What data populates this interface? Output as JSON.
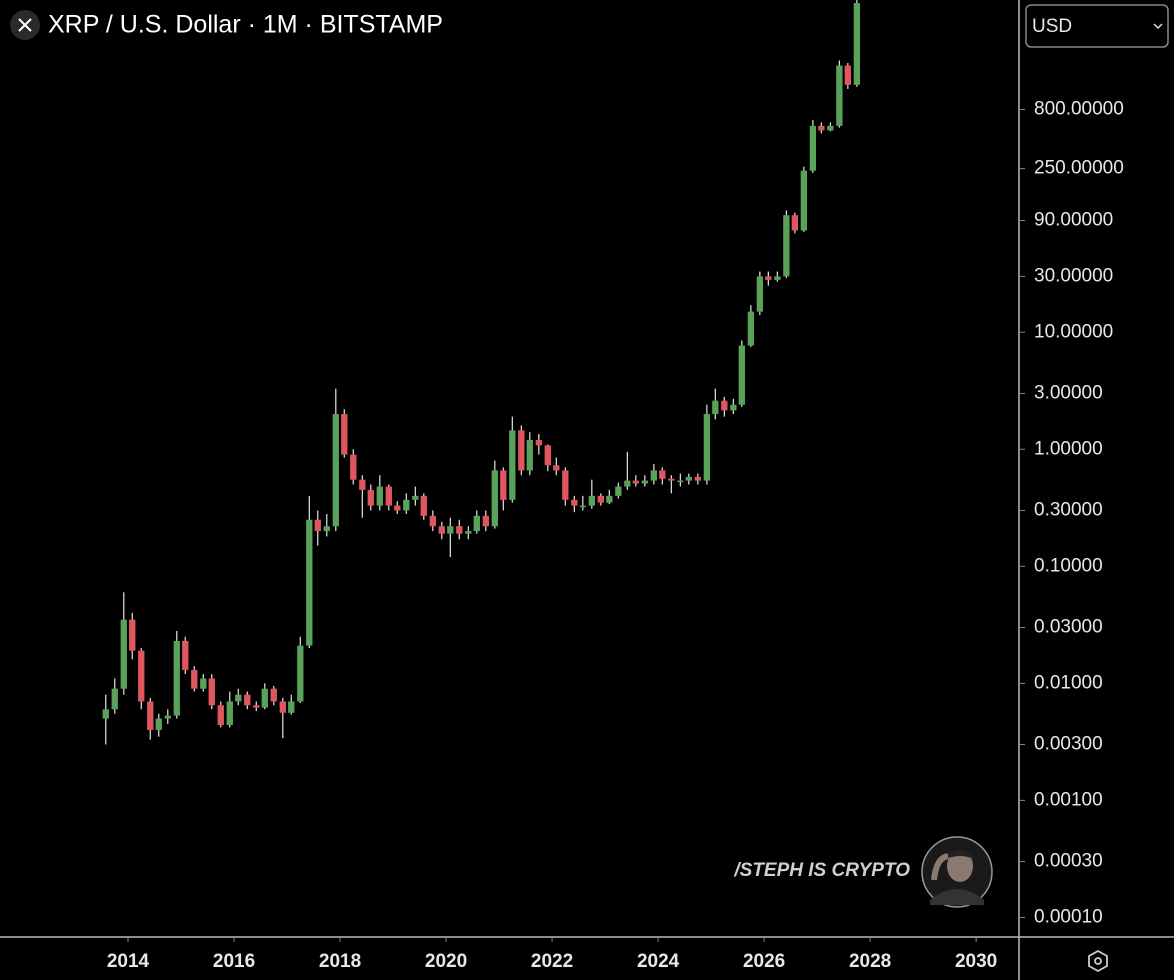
{
  "chart_data": {
    "type": "candlestick",
    "title": "XRP / U.S. Dollar · 1M · BITSTAMP",
    "log_scale": true,
    "up_color": "#5aa15a",
    "down_color": "#e0565e",
    "wick_color": "#e6e6e6",
    "x": [
      2013.58,
      2013.75,
      2013.92,
      2014.08,
      2014.25,
      2014.42,
      2014.58,
      2014.75,
      2014.92,
      2015.08,
      2015.25,
      2015.42,
      2015.58,
      2015.75,
      2015.92,
      2016.08,
      2016.25,
      2016.42,
      2016.58,
      2016.75,
      2016.92,
      2017.08,
      2017.25,
      2017.42,
      2017.58,
      2017.75,
      2017.92,
      2018.08,
      2018.25,
      2018.42,
      2018.58,
      2018.75,
      2018.92,
      2019.08,
      2019.25,
      2019.42,
      2019.58,
      2019.75,
      2019.92,
      2020.08,
      2020.25,
      2020.42,
      2020.58,
      2020.75,
      2020.92,
      2021.08,
      2021.25,
      2021.42,
      2021.58,
      2021.75,
      2021.92,
      2022.08,
      2022.25,
      2022.42,
      2022.58,
      2022.75,
      2022.92,
      2023.08,
      2023.25,
      2023.42,
      2023.58,
      2023.75,
      2023.92,
      2024.08,
      2024.25,
      2024.42,
      2024.58,
      2024.75,
      2024.92,
      2025.08,
      2025.25,
      2025.42,
      2025.58,
      2025.75,
      2025.92,
      2026.08,
      2026.25,
      2026.42,
      2026.58,
      2026.75,
      2026.92,
      2027.08,
      2027.25,
      2027.42,
      2027.58,
      2027.75
    ],
    "open": [
      0.005,
      0.006,
      0.009,
      0.035,
      0.019,
      0.007,
      0.004,
      0.005,
      0.0053,
      0.023,
      0.013,
      0.009,
      0.011,
      0.0065,
      0.0044,
      0.007,
      0.008,
      0.0065,
      0.0062,
      0.009,
      0.007,
      0.0056,
      0.007,
      0.021,
      0.25,
      0.2,
      0.22,
      2.0,
      0.9,
      0.55,
      0.45,
      0.33,
      0.48,
      0.33,
      0.3,
      0.37,
      0.4,
      0.27,
      0.22,
      0.19,
      0.22,
      0.19,
      0.2,
      0.27,
      0.22,
      0.66,
      0.37,
      1.45,
      0.66,
      1.2,
      1.08,
      0.73,
      0.66,
      0.37,
      0.33,
      0.33,
      0.4,
      0.35,
      0.4,
      0.48,
      0.54,
      0.51,
      0.54,
      0.66,
      0.56,
      0.54,
      0.54,
      0.58,
      0.54,
      2.0,
      2.6,
      2.15,
      2.4,
      7.7,
      15,
      30,
      28,
      30,
      100,
      74,
      240,
      580,
      530,
      580,
      1900,
      1300
    ],
    "high": [
      0.008,
      0.011,
      0.06,
      0.04,
      0.02,
      0.0075,
      0.0055,
      0.006,
      0.028,
      0.025,
      0.014,
      0.012,
      0.012,
      0.007,
      0.0085,
      0.009,
      0.0085,
      0.007,
      0.01,
      0.0095,
      0.0075,
      0.008,
      0.025,
      0.4,
      0.3,
      0.28,
      3.3,
      2.2,
      1.0,
      0.6,
      0.5,
      0.6,
      0.5,
      0.36,
      0.42,
      0.48,
      0.42,
      0.3,
      0.24,
      0.26,
      0.25,
      0.22,
      0.3,
      0.3,
      0.8,
      0.7,
      1.9,
      1.6,
      1.4,
      1.35,
      1.1,
      0.85,
      0.7,
      0.4,
      0.4,
      0.55,
      0.42,
      0.45,
      0.52,
      0.95,
      0.6,
      0.6,
      0.75,
      0.7,
      0.6,
      0.62,
      0.62,
      0.62,
      2.4,
      3.3,
      2.8,
      2.7,
      8.5,
      17,
      33,
      33,
      33,
      110,
      105,
      260,
      650,
      620,
      620,
      2100,
      2000,
      7000
    ],
    "low": [
      0.003,
      0.0055,
      0.008,
      0.016,
      0.006,
      0.0033,
      0.0035,
      0.0045,
      0.005,
      0.012,
      0.0085,
      0.0085,
      0.006,
      0.0042,
      0.0042,
      0.0065,
      0.006,
      0.0058,
      0.006,
      0.0065,
      0.0034,
      0.0054,
      0.0068,
      0.02,
      0.15,
      0.18,
      0.2,
      0.85,
      0.5,
      0.26,
      0.3,
      0.3,
      0.3,
      0.28,
      0.28,
      0.33,
      0.25,
      0.2,
      0.17,
      0.12,
      0.17,
      0.17,
      0.19,
      0.2,
      0.21,
      0.3,
      0.35,
      0.6,
      0.6,
      0.9,
      0.65,
      0.6,
      0.33,
      0.29,
      0.3,
      0.31,
      0.33,
      0.34,
      0.38,
      0.45,
      0.48,
      0.48,
      0.5,
      0.5,
      0.42,
      0.48,
      0.5,
      0.5,
      0.5,
      1.8,
      1.9,
      2.0,
      2.3,
      7.5,
      14,
      25,
      27,
      29,
      70,
      72,
      230,
      500,
      520,
      560,
      1200,
      1250
    ],
    "close": [
      0.006,
      0.009,
      0.035,
      0.019,
      0.007,
      0.004,
      0.005,
      0.0053,
      0.023,
      0.013,
      0.009,
      0.011,
      0.0065,
      0.0044,
      0.007,
      0.008,
      0.0065,
      0.0062,
      0.009,
      0.007,
      0.0056,
      0.007,
      0.021,
      0.25,
      0.2,
      0.22,
      2.0,
      0.9,
      0.55,
      0.45,
      0.33,
      0.48,
      0.33,
      0.3,
      0.37,
      0.4,
      0.27,
      0.22,
      0.19,
      0.22,
      0.19,
      0.2,
      0.27,
      0.22,
      0.66,
      0.37,
      1.45,
      0.66,
      1.2,
      1.08,
      0.73,
      0.66,
      0.37,
      0.33,
      0.33,
      0.4,
      0.35,
      0.4,
      0.48,
      0.54,
      0.51,
      0.54,
      0.66,
      0.56,
      0.54,
      0.54,
      0.58,
      0.54,
      2.0,
      2.6,
      2.15,
      2.4,
      7.7,
      15,
      30,
      28,
      30,
      100,
      74,
      240,
      580,
      530,
      580,
      1900,
      1300,
      6500
    ],
    "xlim": [
      2011.585,
      2030.79
    ],
    "xticks": [
      2014,
      2016,
      2018,
      2020,
      2022,
      2024,
      2026,
      2028,
      2030
    ],
    "ylim": [
      6.8e-05,
      6900
    ],
    "yticks": [
      {
        "value": 0.0001,
        "label": "0.00010"
      },
      {
        "value": 0.0003,
        "label": "0.00030"
      },
      {
        "value": 0.001,
        "label": "0.00100"
      },
      {
        "value": 0.003,
        "label": "0.00300"
      },
      {
        "value": 0.01,
        "label": "0.01000"
      },
      {
        "value": 0.03,
        "label": "0.03000"
      },
      {
        "value": 0.1,
        "label": "0.10000"
      },
      {
        "value": 0.3,
        "label": "0.30000"
      },
      {
        "value": 1,
        "label": "1.00000"
      },
      {
        "value": 3,
        "label": "3.00000"
      },
      {
        "value": 10,
        "label": "10.00000"
      },
      {
        "value": 30,
        "label": "30.00000"
      },
      {
        "value": 90,
        "label": "90.00000"
      },
      {
        "value": 250,
        "label": "250.00000"
      },
      {
        "value": 800,
        "label": "800.00000"
      }
    ]
  },
  "ui": {
    "currency": "USD",
    "watermark": "/STEPH IS CRYPTO"
  }
}
